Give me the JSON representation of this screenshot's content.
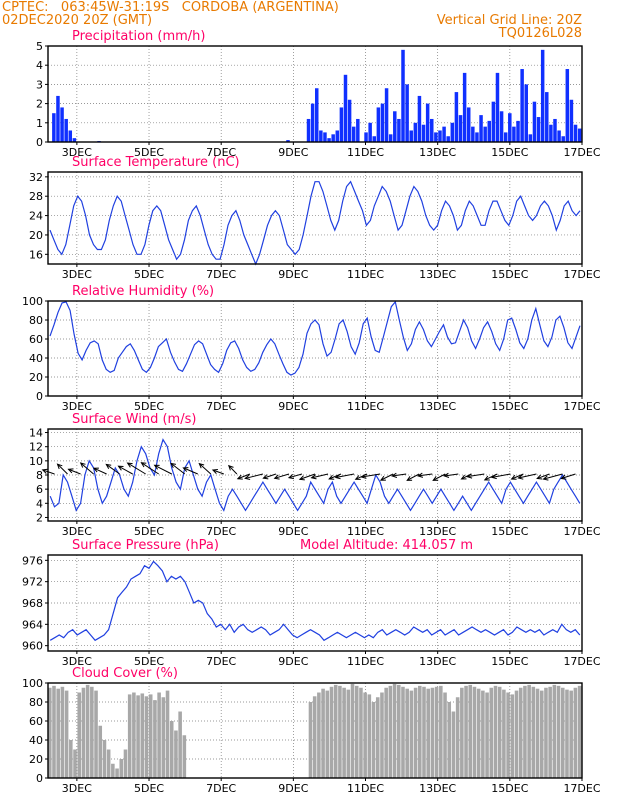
{
  "header": {
    "line1_left": "CPTEC:   063:45W-31:19S   CORDOBA (ARGENTINA)",
    "line2_left": "02DEC2020 20Z (GMT)",
    "line2_right": "Vertical Grid Line: 20Z",
    "line3_right": "TQ0126L028",
    "color": "#e87a00"
  },
  "colors": {
    "title": "#ff0066",
    "line": "#2040e0",
    "bar": "#1030ff",
    "cloud": "#a8a8a8",
    "arrow": "#000000",
    "grid": "#777777"
  },
  "chart_data": [
    {
      "id": "precip",
      "type": "bar",
      "title": "Precipitation (mm/h)",
      "ylim": [
        0,
        5
      ],
      "yticks": [
        0,
        1,
        2,
        3,
        4,
        5
      ],
      "x_ticks": [
        "3DEC",
        "5DEC",
        "7DEC",
        "9DEC",
        "11DEC",
        "13DEC",
        "15DEC",
        "17DEC"
      ],
      "x": {
        "start_day": 2.2,
        "end_day": 17.0,
        "step_hours": 3
      },
      "series": [
        {
          "values": [
            0,
            1.5,
            2.4,
            1.8,
            1.2,
            0.6,
            0.2,
            0,
            0,
            0,
            0,
            0,
            0.05,
            0,
            0,
            0,
            0,
            0,
            0,
            0,
            0,
            0,
            0,
            0,
            0,
            0,
            0,
            0,
            0,
            0,
            0,
            0,
            0,
            0,
            0,
            0,
            0,
            0,
            0,
            0,
            0,
            0,
            0,
            0,
            0,
            0,
            0,
            0,
            0,
            0,
            0,
            0,
            0,
            0,
            0,
            0,
            0,
            0,
            0.1,
            0,
            0,
            0,
            0,
            1.2,
            2.0,
            2.8,
            0.6,
            0.5,
            0.2,
            0.4,
            0.6,
            1.8,
            3.5,
            2.2,
            0.8,
            1.2,
            0,
            0.5,
            1.0,
            0.3,
            1.8,
            2.0,
            2.8,
            0.4,
            1.6,
            1.2,
            4.8,
            3.0,
            0.6,
            1.0,
            2.4,
            0.9,
            2.0,
            1.2,
            0.5,
            0.6,
            0.8,
            0.3,
            1.0,
            2.6,
            1.4,
            3.6,
            1.8,
            0.8,
            0.5,
            1.4,
            0.8,
            1.1,
            2.1,
            3.6,
            1.6,
            0.5,
            1.5,
            0.8,
            1.1,
            3.8,
            3.0,
            0.4,
            2.1,
            1.3,
            4.8,
            2.6,
            0.9,
            1.2,
            0.6,
            0.3,
            3.8,
            2.2,
            0.9,
            0.7
          ]
        }
      ]
    },
    {
      "id": "temp",
      "type": "line",
      "title": "Surface Temperature (nC)",
      "ylim": [
        14,
        33
      ],
      "yticks": [
        16,
        20,
        24,
        28,
        32
      ],
      "x_ticks": [
        "3DEC",
        "5DEC",
        "7DEC",
        "9DEC",
        "11DEC",
        "13DEC",
        "15DEC",
        "17DEC"
      ],
      "x": {
        "start_day": 2.2,
        "end_day": 17.0,
        "step_hours": 3
      },
      "series": [
        {
          "values": [
            21,
            19,
            17,
            16,
            18,
            22,
            26,
            28,
            27,
            24,
            20,
            18,
            17,
            17,
            19,
            23,
            26,
            28,
            27,
            24,
            21,
            18,
            16,
            16,
            18,
            22,
            25,
            26,
            25,
            22,
            19,
            17,
            15,
            16,
            19,
            23,
            25,
            26,
            24,
            21,
            18,
            16,
            15,
            15,
            18,
            22,
            24,
            25,
            23,
            20,
            18,
            16,
            14,
            16,
            19,
            22,
            24,
            25,
            24,
            21,
            18,
            17,
            16,
            17,
            20,
            24,
            28,
            31,
            31,
            29,
            26,
            23,
            21,
            23,
            27,
            30,
            31,
            29,
            27,
            25,
            22,
            23,
            26,
            28,
            30,
            29,
            27,
            24,
            21,
            22,
            25,
            28,
            30,
            29,
            27,
            24,
            22,
            21,
            22,
            25,
            27,
            26,
            24,
            21,
            22,
            25,
            27,
            26,
            24,
            22,
            22,
            25,
            27,
            27,
            25,
            23,
            22,
            24,
            27,
            28,
            26,
            24,
            23,
            24,
            26,
            27,
            26,
            24,
            21,
            23,
            26,
            27,
            25,
            24,
            25
          ]
        }
      ]
    },
    {
      "id": "rh",
      "type": "line",
      "title": "Relative Humidity (%)",
      "ylim": [
        0,
        100
      ],
      "yticks": [
        0,
        20,
        40,
        60,
        80,
        100
      ],
      "x_ticks": [
        "3DEC",
        "5DEC",
        "7DEC",
        "9DEC",
        "11DEC",
        "13DEC",
        "15DEC",
        "17DEC"
      ],
      "x": {
        "start_day": 2.2,
        "end_day": 17.0,
        "step_hours": 3
      },
      "series": [
        {
          "values": [
            63,
            75,
            88,
            98,
            99,
            90,
            65,
            45,
            38,
            48,
            56,
            58,
            55,
            38,
            28,
            25,
            27,
            40,
            46,
            52,
            55,
            48,
            38,
            28,
            25,
            30,
            40,
            52,
            56,
            60,
            46,
            36,
            28,
            26,
            34,
            44,
            54,
            58,
            55,
            44,
            33,
            28,
            25,
            34,
            48,
            56,
            58,
            50,
            38,
            30,
            26,
            28,
            35,
            46,
            54,
            60,
            55,
            44,
            34,
            25,
            22,
            24,
            30,
            44,
            66,
            76,
            80,
            75,
            55,
            42,
            46,
            60,
            76,
            80,
            68,
            52,
            44,
            56,
            76,
            82,
            62,
            48,
            46,
            62,
            78,
            94,
            99,
            80,
            62,
            48,
            55,
            70,
            78,
            70,
            58,
            52,
            60,
            68,
            75,
            62,
            55,
            56,
            68,
            80,
            72,
            58,
            50,
            60,
            72,
            78,
            68,
            55,
            48,
            60,
            80,
            82,
            70,
            56,
            50,
            60,
            80,
            92,
            75,
            58,
            52,
            62,
            80,
            84,
            72,
            56,
            50,
            62,
            74
          ]
        }
      ]
    },
    {
      "id": "wind",
      "type": "line",
      "title": "Surface Wind (m/s)",
      "ylim": [
        1.5,
        14.5
      ],
      "yticks": [
        2,
        4,
        6,
        8,
        10,
        12,
        14
      ],
      "x_ticks": [
        "3DEC",
        "5DEC",
        "7DEC",
        "9DEC",
        "11DEC",
        "13DEC",
        "15DEC",
        "17DEC"
      ],
      "x": {
        "start_day": 2.2,
        "end_day": 17.0,
        "step_hours": 3
      },
      "arrows_note": "wind direction vectors",
      "series": [
        {
          "values": [
            5,
            3.5,
            4,
            8,
            7,
            5,
            3,
            4,
            8,
            10,
            9,
            6,
            4,
            5,
            7,
            9,
            8,
            6,
            5,
            7,
            10,
            12,
            11,
            9,
            8,
            11,
            13,
            12,
            9,
            7,
            6,
            9,
            10,
            8,
            6,
            5,
            7,
            8,
            6,
            4,
            3,
            5,
            6,
            5,
            4,
            3,
            4,
            5,
            6,
            7,
            6,
            5,
            4,
            5,
            6,
            5,
            4,
            3,
            4,
            5,
            7,
            6,
            5,
            4,
            6,
            7,
            5,
            4,
            5,
            6,
            7,
            6,
            5,
            4,
            6,
            8,
            7,
            5,
            4,
            5,
            6,
            5,
            4,
            3,
            4,
            5,
            6,
            5,
            4,
            5,
            6,
            5,
            4,
            3,
            4,
            5,
            4,
            3,
            4,
            5,
            6,
            7,
            6,
            5,
            4,
            6,
            7,
            6,
            5,
            4,
            5,
            6,
            7,
            6,
            5,
            4,
            6,
            7,
            8,
            7,
            6,
            5,
            4
          ]
        }
      ]
    },
    {
      "id": "pressure",
      "type": "line",
      "title": "Surface Pressure (hPa)",
      "annotation": "Model Altitude: 414.057 m",
      "ylim": [
        959,
        977
      ],
      "yticks": [
        960,
        964,
        968,
        972,
        976
      ],
      "x_ticks": [
        "3DEC",
        "5DEC",
        "7DEC",
        "9DEC",
        "11DEC",
        "13DEC",
        "15DEC",
        "17DEC"
      ],
      "x": {
        "start_day": 2.2,
        "end_day": 17.0,
        "step_hours": 3
      },
      "series": [
        {
          "values": [
            961,
            961.5,
            962,
            961.5,
            962.5,
            963,
            962,
            962.5,
            963,
            962,
            961,
            961.5,
            962,
            963,
            966,
            969,
            970,
            971,
            972.5,
            973,
            973.5,
            975,
            974.5,
            975.8,
            975,
            974,
            972,
            973,
            972.5,
            973,
            972,
            970,
            968,
            968.5,
            968,
            966,
            965,
            963.5,
            964,
            963,
            964,
            962.5,
            963.5,
            964,
            963,
            962.5,
            963,
            963.5,
            963,
            962,
            962.5,
            963,
            964,
            963,
            962,
            961.5,
            962,
            962.5,
            963,
            962.5,
            962,
            961,
            961.5,
            962,
            962.5,
            962,
            961.5,
            962,
            962.5,
            962,
            961.5,
            962,
            961.5,
            962.5,
            963,
            962,
            962.5,
            963,
            962.5,
            962,
            962.5,
            963.5,
            963,
            962.5,
            963,
            962,
            962.5,
            963,
            962,
            962.5,
            963,
            962,
            962.5,
            963,
            963.5,
            963,
            962.5,
            963,
            962.5,
            962,
            962.5,
            963,
            962,
            962.5,
            963.5,
            963,
            962.5,
            963,
            962.5,
            963,
            962,
            962.5,
            963,
            962.5,
            964,
            963,
            962.5,
            963,
            962
          ]
        }
      ]
    },
    {
      "id": "cloud",
      "type": "bar",
      "title": "Cloud Cover (%)",
      "ylim": [
        0,
        100
      ],
      "yticks": [
        0,
        20,
        40,
        60,
        80,
        100
      ],
      "x_ticks": [
        "3DEC",
        "5DEC",
        "7DEC",
        "9DEC",
        "11DEC",
        "13DEC",
        "15DEC",
        "17DEC"
      ],
      "x": {
        "start_day": 2.2,
        "end_day": 17.0,
        "step_hours": 3
      },
      "series": [
        {
          "values": [
            95,
            97,
            94,
            96,
            92,
            40,
            30,
            90,
            95,
            98,
            96,
            92,
            55,
            40,
            30,
            15,
            10,
            20,
            30,
            88,
            90,
            87,
            89,
            86,
            88,
            82,
            90,
            85,
            92,
            60,
            50,
            70,
            45,
            0,
            0,
            0,
            0,
            0,
            0,
            0,
            0,
            0,
            0,
            0,
            0,
            0,
            0,
            0,
            0,
            0,
            0,
            0,
            0,
            0,
            0,
            0,
            0,
            0,
            0,
            0,
            0,
            0,
            80,
            86,
            90,
            94,
            92,
            96,
            98,
            97,
            95,
            93,
            99,
            97,
            95,
            90,
            88,
            80,
            85,
            90,
            95,
            97,
            99,
            98,
            96,
            94,
            92,
            95,
            97,
            96,
            94,
            95,
            96,
            97,
            90,
            80,
            70,
            85,
            95,
            97,
            98,
            96,
            94,
            92,
            90,
            95,
            97,
            96,
            93,
            90,
            88,
            92,
            95,
            97,
            98,
            96,
            94,
            92,
            95,
            96,
            98,
            97,
            95,
            93,
            92,
            95,
            97
          ]
        }
      ]
    }
  ]
}
